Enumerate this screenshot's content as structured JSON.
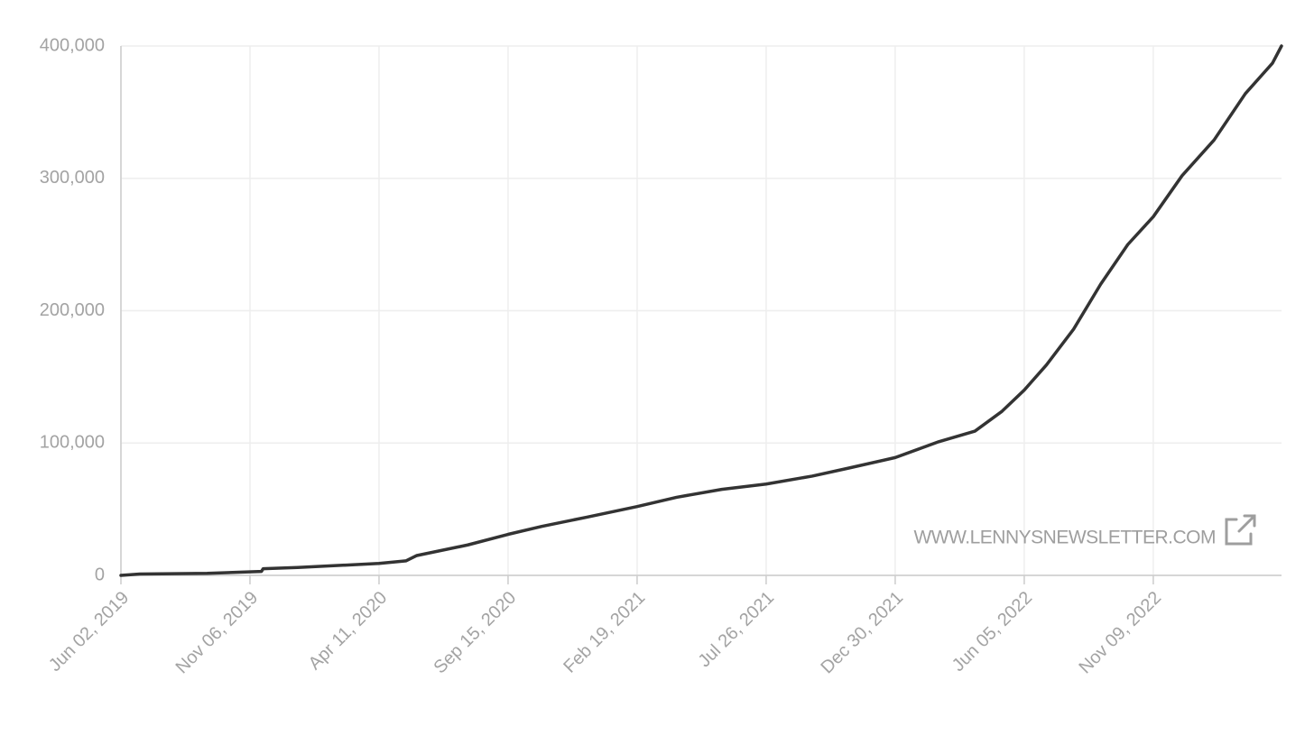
{
  "chart_data": {
    "type": "line",
    "x": [
      "2019-06-02",
      "2019-06-25",
      "2019-09-15",
      "2019-11-20",
      "2019-11-22",
      "2020-01-03",
      "2020-04-11",
      "2020-05-14",
      "2020-05-27",
      "2020-07-28",
      "2020-09-15",
      "2020-10-26",
      "2020-12-20",
      "2021-02-19",
      "2021-04-08",
      "2021-06-02",
      "2021-07-26",
      "2021-09-20",
      "2021-11-03",
      "2021-12-30",
      "2022-02-21",
      "2022-04-06",
      "2022-05-09",
      "2022-06-05",
      "2022-07-02",
      "2022-08-04",
      "2022-09-06",
      "2022-10-09",
      "2022-11-09",
      "2022-12-14",
      "2023-01-22",
      "2023-03-01",
      "2023-04-03",
      "2023-04-14"
    ],
    "values": [
      0,
      1000,
      1500,
      3000,
      5000,
      6000,
      9000,
      11000,
      15000,
      23000,
      31000,
      37000,
      44000,
      52000,
      59000,
      65000,
      69000,
      75000,
      81000,
      89000,
      101000,
      109000,
      124000,
      140000,
      159000,
      186000,
      220000,
      250000,
      271000,
      302000,
      329000,
      364000,
      387000,
      400000
    ],
    "color": "#333333",
    "xlim": [
      "2019-06-02",
      "2023-04-14"
    ],
    "xticks": [
      {
        "value": "2019-06-02",
        "label": "Jun 02, 2019"
      },
      {
        "value": "2019-11-06",
        "label": "Nov 06, 2019"
      },
      {
        "value": "2020-04-11",
        "label": "Apr 11, 2020"
      },
      {
        "value": "2020-09-15",
        "label": "Sep 15, 2020"
      },
      {
        "value": "2021-02-19",
        "label": "Feb 19, 2021"
      },
      {
        "value": "2021-07-26",
        "label": "Jul 26, 2021"
      },
      {
        "value": "2021-12-30",
        "label": "Dec 30, 2021"
      },
      {
        "value": "2022-06-05",
        "label": "Jun 05, 2022"
      },
      {
        "value": "2022-11-09",
        "label": "Nov 09, 2022"
      }
    ],
    "ylim": [
      0,
      400000
    ],
    "yticks": [
      0,
      {
        "value": 100000,
        "label": "100,000"
      },
      {
        "value": 200000,
        "label": "200,000"
      },
      {
        "value": 300000,
        "label": "300,000"
      },
      {
        "value": 400000,
        "label": "400,000"
      }
    ],
    "grid": true,
    "watermark": "WWW.LENNYSNEWSLETTER.COM"
  }
}
